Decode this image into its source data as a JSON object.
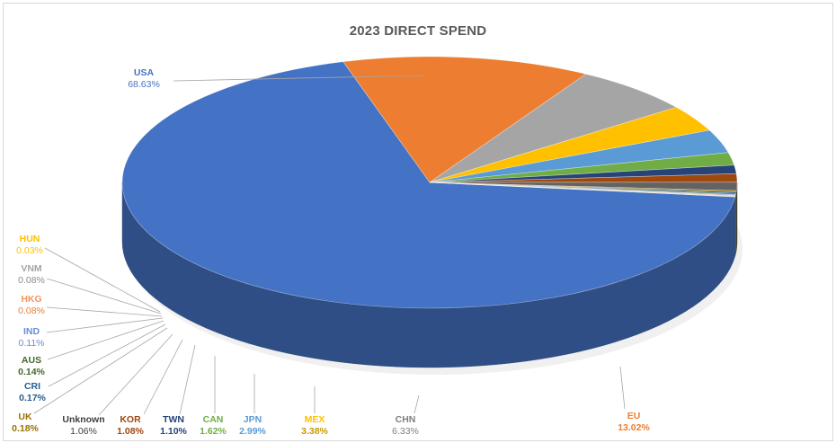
{
  "chart_data": {
    "type": "pie",
    "title": "2023 DIRECT SPEND",
    "slices": [
      {
        "name": "USA",
        "value": 68.63,
        "label": "68.63%",
        "color": "#4472c4"
      },
      {
        "name": "EU",
        "value": 13.02,
        "label": "13.02%",
        "color": "#ed7d31"
      },
      {
        "name": "CHN",
        "value": 6.33,
        "label": "6.33%",
        "color": "#a5a5a5"
      },
      {
        "name": "MEX",
        "value": 3.38,
        "label": "3.38%",
        "color": "#ffc000"
      },
      {
        "name": "JPN",
        "value": 2.99,
        "label": "2.99%",
        "color": "#5b9bd5"
      },
      {
        "name": "CAN",
        "value": 1.62,
        "label": "1.62%",
        "color": "#70ad47"
      },
      {
        "name": "TWN",
        "value": 1.1,
        "label": "1.10%",
        "color": "#264478"
      },
      {
        "name": "KOR",
        "value": 1.08,
        "label": "1.08%",
        "color": "#9e480e"
      },
      {
        "name": "Unknown",
        "value": 1.06,
        "label": "1.06%",
        "color": "#636363"
      },
      {
        "name": "UK",
        "value": 0.18,
        "label": "0.18%",
        "color": "#997300"
      },
      {
        "name": "CRI",
        "value": 0.17,
        "label": "0.17%",
        "color": "#255e91"
      },
      {
        "name": "AUS",
        "value": 0.14,
        "label": "0.14%",
        "color": "#43682b"
      },
      {
        "name": "IND",
        "value": 0.11,
        "label": "0.11%",
        "color": "#698ed0"
      },
      {
        "name": "HKG",
        "value": 0.08,
        "label": "0.08%",
        "color": "#f1975a"
      },
      {
        "name": "VNM",
        "value": 0.08,
        "label": "0.08%",
        "color": "#b7b7b7"
      },
      {
        "name": "HUN",
        "value": 0.03,
        "label": "0.03%",
        "color": "#ffcd33"
      }
    ]
  }
}
